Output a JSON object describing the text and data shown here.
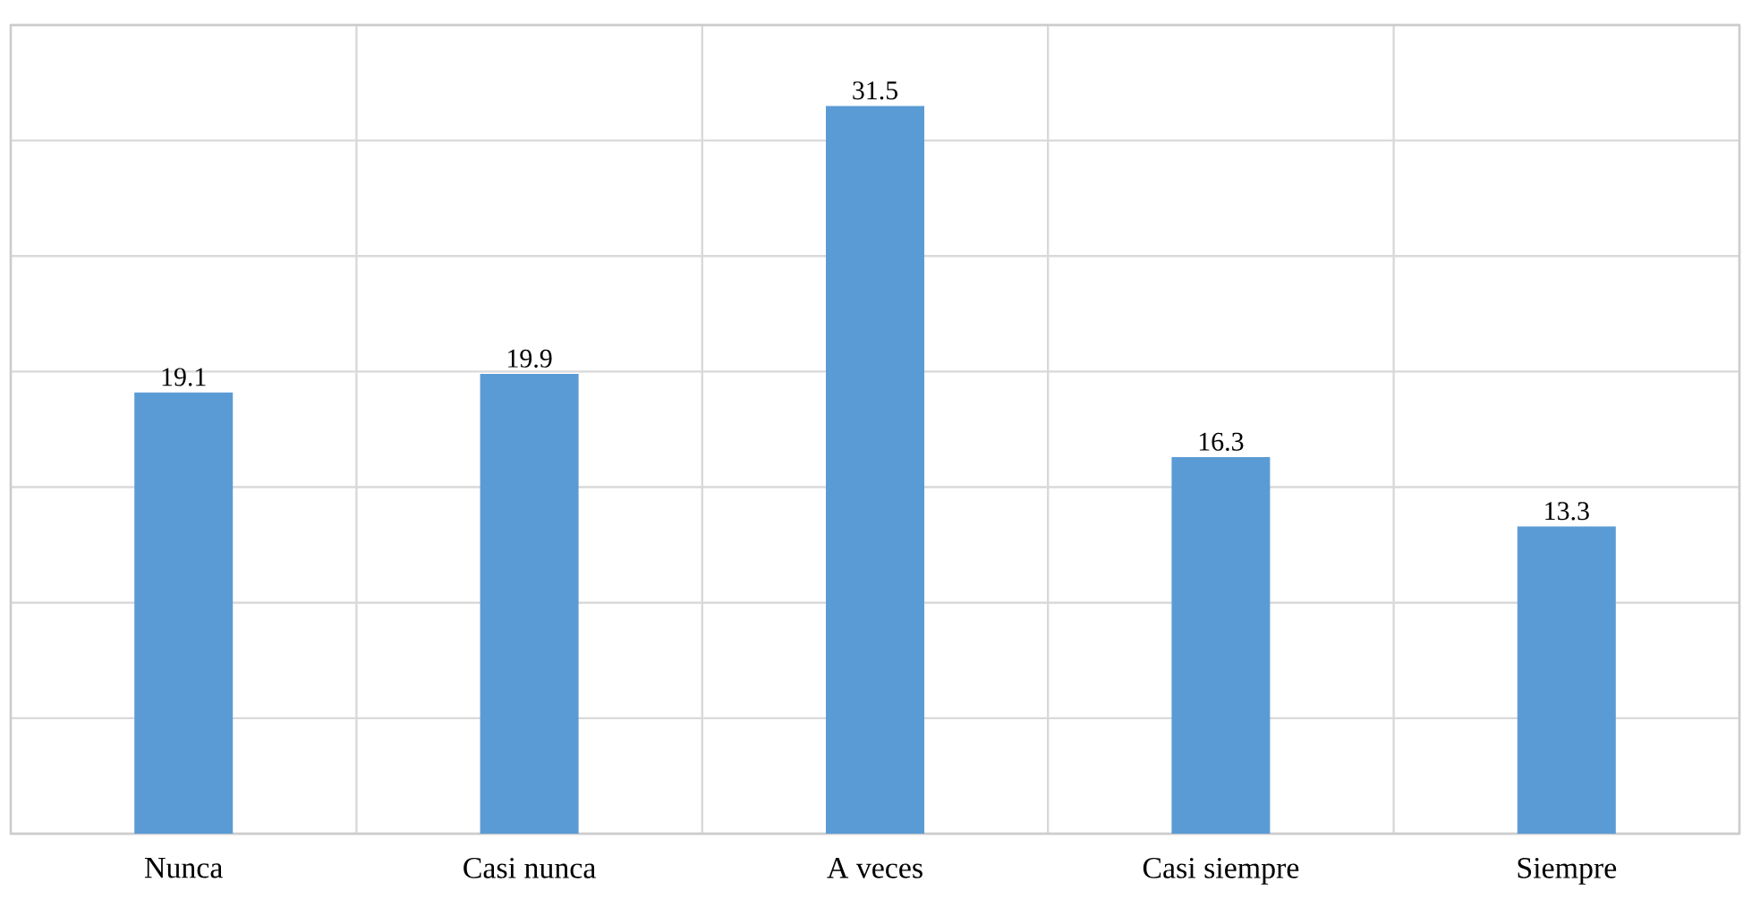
{
  "chart_data": {
    "type": "bar",
    "categories": [
      "Nunca",
      "Casi nunca",
      "A veces",
      "Casi siempre",
      "Siempre"
    ],
    "values": [
      19.1,
      19.9,
      31.5,
      16.3,
      13.3
    ],
    "color": "#5b9bd5",
    "data_labels": true,
    "grid": true,
    "tick_labels": "x",
    "ylim": [
      0,
      35
    ],
    "yticks": [
      {
        "value": 0,
        "label": null
      },
      {
        "value": 5,
        "label": null
      },
      {
        "value": 10,
        "label": null
      },
      {
        "value": 15,
        "label": null
      },
      {
        "value": 20,
        "label": null
      },
      {
        "value": 25,
        "label": null
      },
      {
        "value": 30,
        "label": null
      },
      {
        "value": 35,
        "label": null
      }
    ]
  }
}
